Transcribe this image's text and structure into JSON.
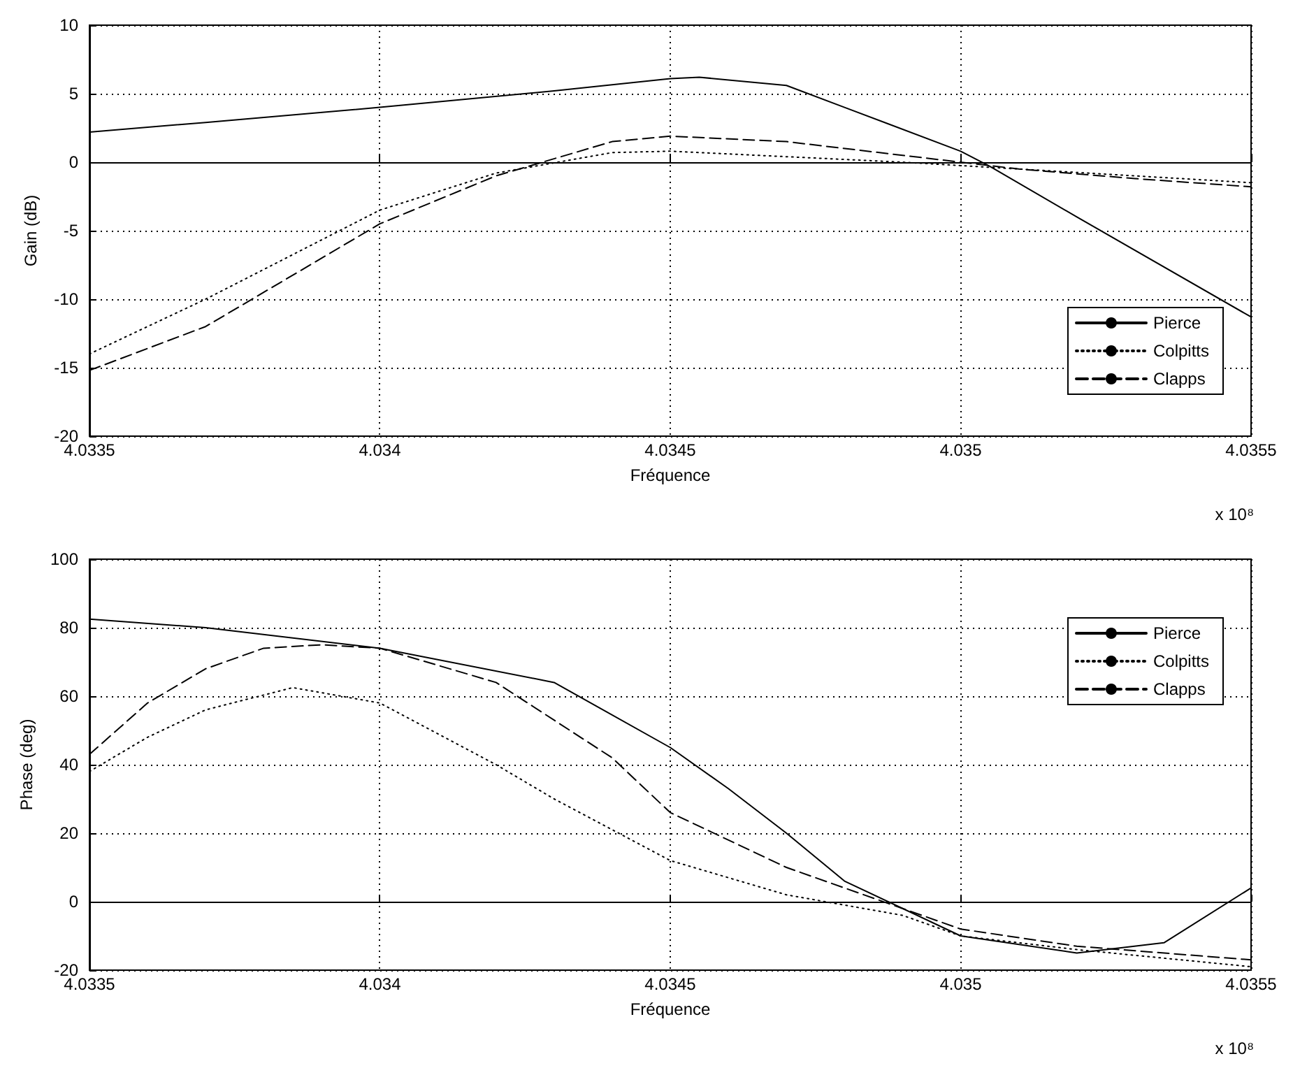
{
  "chart_data": [
    {
      "type": "line",
      "xlabel": "Fréquence",
      "ylabel": "Gain (dB)",
      "xlim": [
        4.0335,
        4.0355
      ],
      "xticks": [
        4.0335,
        4.034,
        4.0345,
        4.035,
        4.0355
      ],
      "ylim": [
        -20,
        10
      ],
      "yticks": [
        -20,
        -15,
        -10,
        -5,
        0,
        5,
        10
      ],
      "grid": true,
      "legend": "bottom right",
      "marker": "none",
      "annotations": [
        "x 10⁸"
      ],
      "series": [
        {
          "name": "Pierce",
          "color": "#000000",
          "line_style": "solid",
          "x": [
            4.0335,
            4.0337,
            4.034,
            4.0343,
            4.0345,
            4.03455,
            4.0347,
            4.0348,
            4.035,
            4.03505,
            4.0352,
            4.0355
          ],
          "values": [
            2.2,
            2.9,
            4,
            5.2,
            6.1,
            6.2,
            5.6,
            4,
            0.8,
            -0.3,
            -4,
            -11.3
          ]
        },
        {
          "name": "Colpitts",
          "color": "#000000",
          "line_style": "dotted",
          "x": [
            4.0335,
            4.0337,
            4.034,
            4.0342,
            4.0344,
            4.0345,
            4.0347,
            4.0349,
            4.0351,
            4.0353,
            4.0355
          ],
          "values": [
            -14,
            -10,
            -3.5,
            -0.8,
            0.7,
            0.8,
            0.4,
            0,
            -0.5,
            -1,
            -1.5
          ]
        },
        {
          "name": "Clapps",
          "color": "#000000",
          "line_style": "dashed",
          "x": [
            4.0335,
            4.0337,
            4.034,
            4.0342,
            4.0344,
            4.0345,
            4.0347,
            4.0349,
            4.0351,
            4.0353,
            4.0355
          ],
          "values": [
            -15.2,
            -12,
            -4.5,
            -1,
            1.5,
            1.9,
            1.5,
            0.5,
            -0.5,
            -1.2,
            -1.8
          ]
        }
      ]
    },
    {
      "type": "line",
      "xlabel": "Fréquence",
      "ylabel": "Phase (deg)",
      "xlim": [
        4.0335,
        4.0355
      ],
      "xticks": [
        4.0335,
        4.034,
        4.0345,
        4.035,
        4.0355
      ],
      "ylim": [
        -20,
        100
      ],
      "yticks": [
        -20,
        0,
        20,
        40,
        60,
        80,
        100
      ],
      "grid": true,
      "legend": "top right",
      "marker": "none",
      "annotations": [
        "x 10⁸"
      ],
      "series": [
        {
          "name": "Pierce",
          "color": "#000000",
          "line_style": "solid",
          "x": [
            4.0335,
            4.0337,
            4.034,
            4.0343,
            4.0345,
            4.0346,
            4.0347,
            4.0348,
            4.035,
            4.0352,
            4.03535,
            4.0355
          ],
          "values": [
            82.5,
            80,
            74,
            64,
            45,
            33,
            20,
            6,
            -10,
            -15,
            -12,
            4
          ]
        },
        {
          "name": "Colpitts",
          "color": "#000000",
          "line_style": "dotted",
          "x": [
            4.0335,
            4.0336,
            4.0337,
            4.03385,
            4.034,
            4.0342,
            4.0343,
            4.0345,
            4.0347,
            4.0349,
            4.035,
            4.0352,
            4.0355
          ],
          "values": [
            38,
            48,
            56,
            62.5,
            58,
            40,
            30,
            12,
            2,
            -4,
            -10,
            -14,
            -19
          ]
        },
        {
          "name": "Clapps",
          "color": "#000000",
          "line_style": "dashed",
          "x": [
            4.0335,
            4.0336,
            4.0337,
            4.0338,
            4.0339,
            4.034,
            4.0342,
            4.0344,
            4.0345,
            4.0347,
            4.0348,
            4.035,
            4.0352,
            4.0355
          ],
          "values": [
            43,
            58,
            68,
            74,
            75,
            74,
            64,
            42,
            26,
            10,
            4,
            -8,
            -13,
            -17
          ]
        }
      ]
    }
  ]
}
